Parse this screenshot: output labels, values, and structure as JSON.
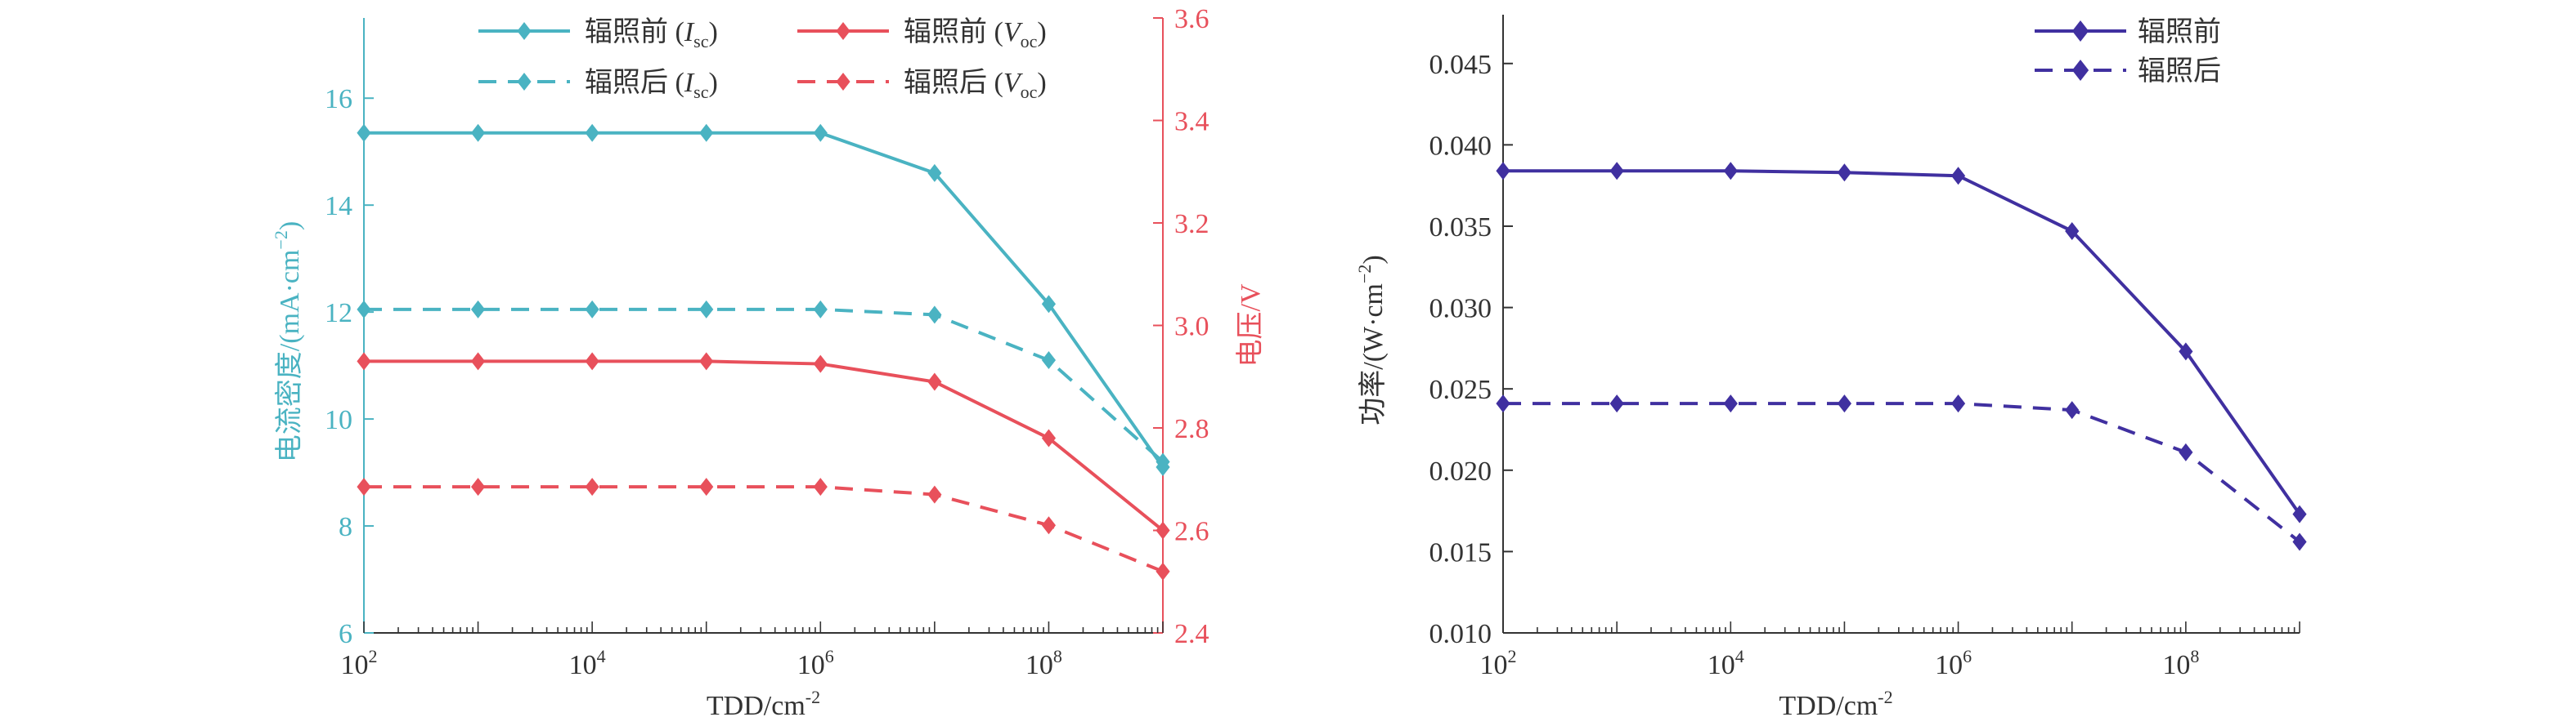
{
  "colors": {
    "isc": "#4ab3c2",
    "voc": "#e8505b",
    "power": "#4030a0",
    "axis": "#333333"
  },
  "chart_data": [
    {
      "type": "line",
      "xlabel": "TDD/cm",
      "xlabel_sup": "-2",
      "x": [
        100,
        1000,
        10000,
        100000,
        1000000,
        10000000,
        100000000,
        1000000000
      ],
      "x_scale": "log",
      "x_ticks": [
        {
          "base": "10",
          "exp": "2"
        },
        {
          "base": "10",
          "exp": "4"
        },
        {
          "base": "10",
          "exp": "6"
        },
        {
          "base": "10",
          "exp": "8"
        }
      ],
      "ylabel_left": "电流密度/(mA·cm",
      "ylabel_left_sup": "−2",
      "ylabel_left_end": ")",
      "ylim_left": [
        6,
        17.5
      ],
      "yticks_left": [
        "6",
        "8",
        "10",
        "12",
        "14",
        "16"
      ],
      "ylabel_right": "电压/V",
      "ylim_right": [
        2.4,
        3.6
      ],
      "yticks_right": [
        "2.4",
        "2.6",
        "2.8",
        "3.0",
        "3.2",
        "3.4",
        "3.6"
      ],
      "legend_placement": "top-center",
      "series": [
        {
          "name": "辐照前",
          "sub_var": "I",
          "sub": "sc",
          "axis": "left",
          "dash": false,
          "color": "isc",
          "values": [
            15.35,
            15.35,
            15.35,
            15.35,
            15.35,
            14.6,
            12.15,
            9.1
          ]
        },
        {
          "name": "辐照后",
          "sub_var": "I",
          "sub": "sc",
          "axis": "left",
          "dash": true,
          "color": "isc",
          "values": [
            12.05,
            12.05,
            12.05,
            12.05,
            12.05,
            11.95,
            11.1,
            9.2
          ]
        },
        {
          "name": "辐照前",
          "sub_var": "V",
          "sub": "oc",
          "axis": "right",
          "dash": false,
          "color": "voc",
          "values": [
            2.93,
            2.93,
            2.93,
            2.93,
            2.925,
            2.89,
            2.78,
            2.6
          ]
        },
        {
          "name": "辐照后",
          "sub_var": "V",
          "sub": "oc",
          "axis": "right",
          "dash": true,
          "color": "voc",
          "values": [
            2.685,
            2.685,
            2.685,
            2.685,
            2.685,
            2.67,
            2.61,
            2.52
          ]
        }
      ]
    },
    {
      "type": "line",
      "xlabel": "TDD/cm",
      "xlabel_sup": "-2",
      "x": [
        100,
        1000,
        10000,
        100000,
        1000000,
        10000000,
        100000000,
        1000000000
      ],
      "x_scale": "log",
      "x_ticks": [
        {
          "base": "10",
          "exp": "2"
        },
        {
          "base": "10",
          "exp": "4"
        },
        {
          "base": "10",
          "exp": "6"
        },
        {
          "base": "10",
          "exp": "8"
        }
      ],
      "ylabel": "功率/(W·cm",
      "ylabel_sup": "−2",
      "ylabel_end": ")",
      "ylim": [
        0.01,
        0.048
      ],
      "yticks": [
        "0.010",
        "0.015",
        "0.020",
        "0.025",
        "0.030",
        "0.035",
        "0.040",
        "0.045"
      ],
      "legend_placement": "top-right",
      "series": [
        {
          "name": "辐照前",
          "dash": false,
          "color": "power",
          "values": [
            0.0384,
            0.0384,
            0.0384,
            0.0383,
            0.0381,
            0.0347,
            0.0273,
            0.0173
          ]
        },
        {
          "name": "辐照后",
          "dash": true,
          "color": "power",
          "values": [
            0.0241,
            0.0241,
            0.0241,
            0.0241,
            0.0241,
            0.0237,
            0.0211,
            0.0156
          ]
        }
      ]
    }
  ]
}
